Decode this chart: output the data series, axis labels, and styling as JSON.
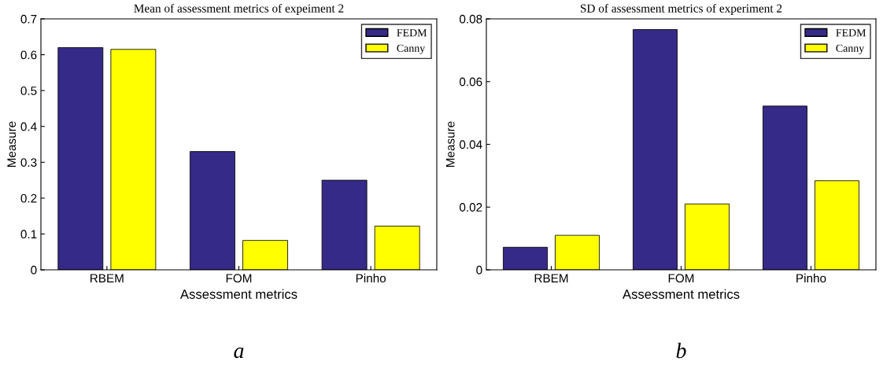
{
  "chart_data": [
    {
      "type": "bar",
      "title": "Mean of assessment metrics of expeiment 2",
      "xlabel": "Assessment metrics",
      "ylabel": "Measure",
      "categories": [
        "RBEM",
        "FOM",
        "Pinho"
      ],
      "series": [
        {
          "name": "FEDM",
          "color": "#352a87",
          "values": [
            0.62,
            0.33,
            0.25
          ]
        },
        {
          "name": "Canny",
          "color": "#ffff00",
          "values": [
            0.615,
            0.082,
            0.122
          ]
        }
      ],
      "ylim": [
        0,
        0.7
      ],
      "yticks": [
        0,
        0.1,
        0.2,
        0.3,
        0.4,
        0.5,
        0.6,
        0.7
      ],
      "grid": false,
      "legend": "top right",
      "annotations": [
        "a"
      ]
    },
    {
      "type": "bar",
      "title": "SD of assessment metrics of experiment 2",
      "xlabel": "Assessment metrics",
      "ylabel": "Measure",
      "categories": [
        "RBEM",
        "FOM",
        "Pinho"
      ],
      "series": [
        {
          "name": "FEDM",
          "color": "#352a87",
          "values": [
            0.0072,
            0.0766,
            0.0522
          ]
        },
        {
          "name": "Canny",
          "color": "#ffff00",
          "values": [
            0.011,
            0.021,
            0.0284
          ]
        }
      ],
      "ylim": [
        0,
        0.08
      ],
      "yticks": [
        0,
        0.02,
        0.04,
        0.06,
        0.08
      ],
      "grid": false,
      "legend": "top right",
      "annotations": [
        "b"
      ]
    }
  ]
}
